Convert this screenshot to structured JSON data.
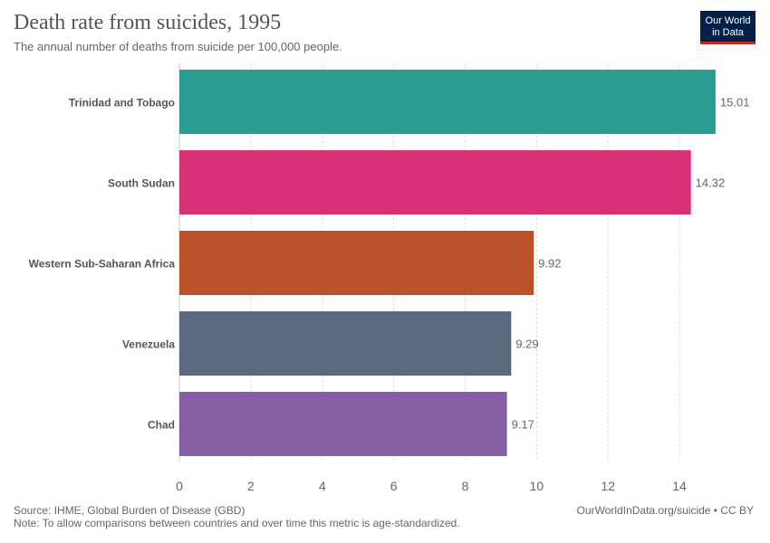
{
  "header": {
    "title": "Death rate from suicides, 1995",
    "subtitle": "The annual number of deaths from suicide per 100,000 people."
  },
  "logo": {
    "line1": "Our World",
    "line2": "in Data",
    "bg_color": "#002147",
    "accent_color": "#ce261e"
  },
  "chart_data": {
    "type": "bar",
    "orientation": "horizontal",
    "categories": [
      "Trinidad and Tobago",
      "South Sudan",
      "Western Sub-Saharan Africa",
      "Venezuela",
      "Chad"
    ],
    "values": [
      15.01,
      14.32,
      9.92,
      9.29,
      9.17
    ],
    "value_labels": [
      "15.01",
      "14.32",
      "9.92",
      "9.29",
      "9.17"
    ],
    "colors": [
      "#2a9d92",
      "#d73278",
      "#bb5128",
      "#5a6980",
      "#855ea4"
    ],
    "xlim": [
      0,
      15
    ],
    "xticks": [
      0,
      2,
      4,
      6,
      8,
      10,
      12,
      14
    ],
    "grid": "vertical dashed"
  },
  "footer": {
    "source": "Source: IHME, Global Burden of Disease (GBD)",
    "note": "Note: To allow comparisons between countries and over time this metric is age-standardized.",
    "link": "OurWorldInData.org/suicide",
    "license": " • CC BY"
  }
}
